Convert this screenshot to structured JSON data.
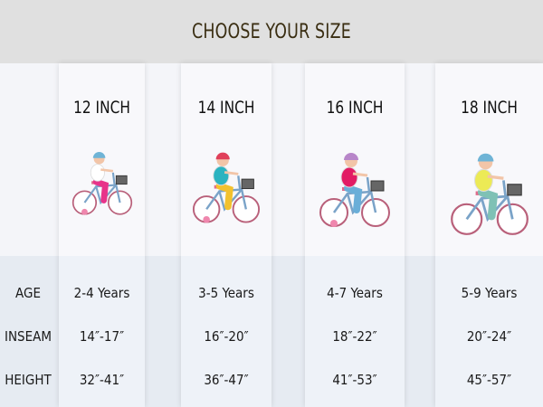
{
  "header": {
    "title": "CHOOSE YOUR SIZE"
  },
  "row_labels": [
    "AGE",
    "INSEAM",
    "HEIGHT"
  ],
  "sizes": [
    {
      "name": "12 INCH",
      "age": "2-4 Years",
      "inseam": "14″-17″",
      "height": "32″-41″",
      "helmet": "#6fb4d6",
      "shirt": "#ffffff",
      "pants": "#e8338a"
    },
    {
      "name": "14 INCH",
      "age": "3-5 Years",
      "inseam": "16″-20″",
      "height": "36″-47″",
      "helmet": "#e0405a",
      "shirt": "#2bb3c0",
      "pants": "#f2c12e"
    },
    {
      "name": "16 INCH",
      "age": "4-7 Years",
      "inseam": "18″-22″",
      "height": "41″-53″",
      "helmet": "#b886c9",
      "shirt": "#e21c64",
      "pants": "#6aaed8"
    },
    {
      "name": "18 INCH",
      "age": "5-9 Years",
      "inseam": "20″-24″",
      "height": "45″-57″",
      "helmet": "#6fb4d6",
      "shirt": "#ecea55",
      "pants": "#7fc1b5"
    }
  ]
}
